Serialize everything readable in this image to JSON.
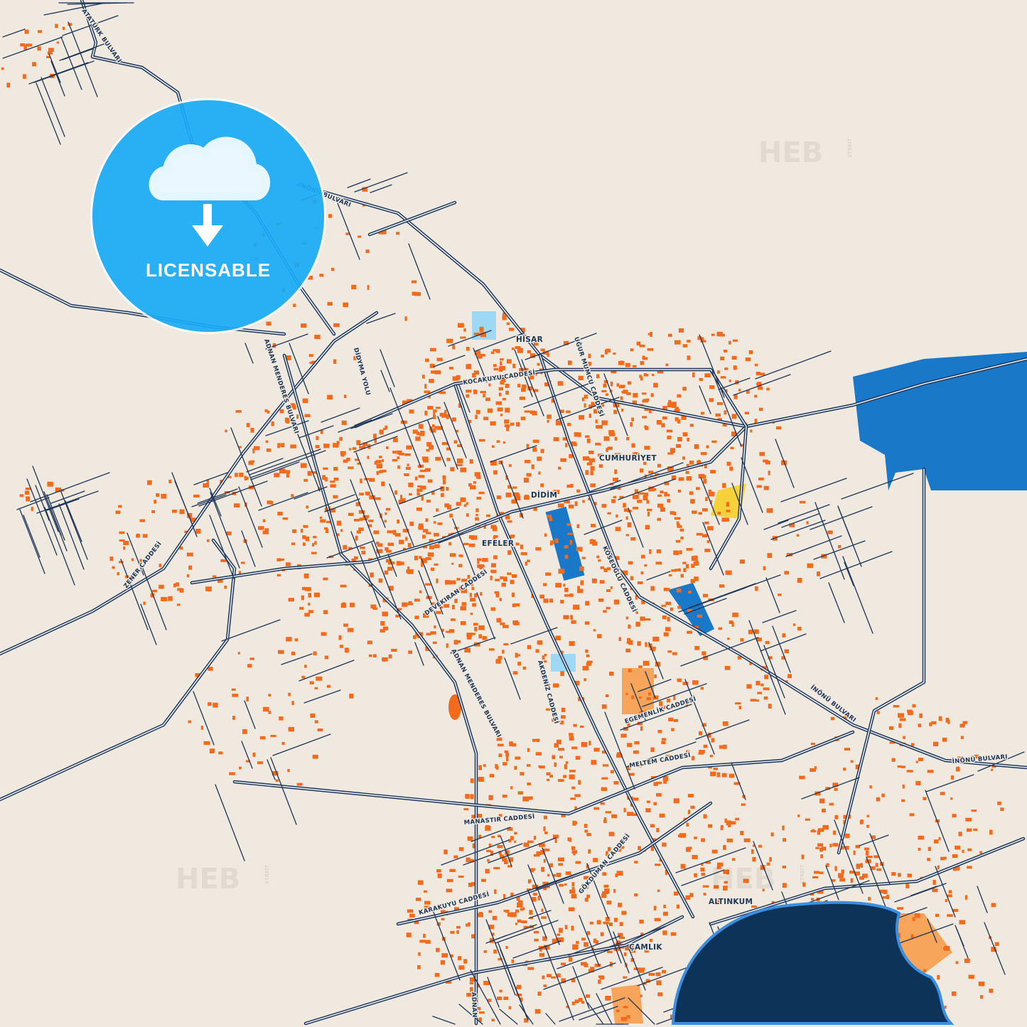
{
  "colors": {
    "background": "#efe9df",
    "road": "#1d3557",
    "building": "#f26a1b",
    "water": "#0d3358",
    "industrial": "#1a78c8",
    "park": "#9fd8f2",
    "badge": "#1aaaf5"
  },
  "badge": {
    "icon": "cloud-download-icon",
    "label": "LICENSABLE"
  },
  "watermarks": [
    {
      "text": "HEB",
      "small": "STREIT"
    },
    {
      "text": "HEB",
      "small": "STREIT"
    },
    {
      "text": "HEB",
      "small": "STREIT"
    }
  ],
  "labels": {
    "ataturk": "ATATÜRK BULVARI",
    "inonu_top": "İNÖNÜ BULVARI",
    "adnan_top": "ADNAN MENDERES BULVARI",
    "didyma": "DİDYMA YOLU",
    "hisar": "HİSAR",
    "ugur": "UĞUR MUMCU CADDESİ",
    "kocakuyu": "KOCAKUYU CADDESİ",
    "cumhuriyet": "CUMHURİYET",
    "didim": "DİDİM",
    "efeler": "EFELER",
    "koseoglu": "KÖSEOĞLU CADDESİ",
    "devekiran": "DEVEKIRAN CADDESİ",
    "zener": "ZENER CADDESİ",
    "adnan_mid": "ADNAN MENDERES BULVARI",
    "akdeniz": "AKDENİZ CADDESİ",
    "egemenlik": "EGEMENLİK CADDESİ",
    "inonu_mid": "İNÖNÜ BULVARI",
    "inonu_right": "İNÖNÜ BULVARI",
    "meltem": "MELTEM CADDESİ",
    "manastir": "MANASTIR CADDESİ",
    "gokduman": "GÖKDUMAN CADDESİ",
    "karakuyu": "KARAKUYU CADDESİ",
    "altinkum": "ALTINKUM",
    "camlik": "ÇAMLIK",
    "adnan_bottom": "ADNAN"
  }
}
